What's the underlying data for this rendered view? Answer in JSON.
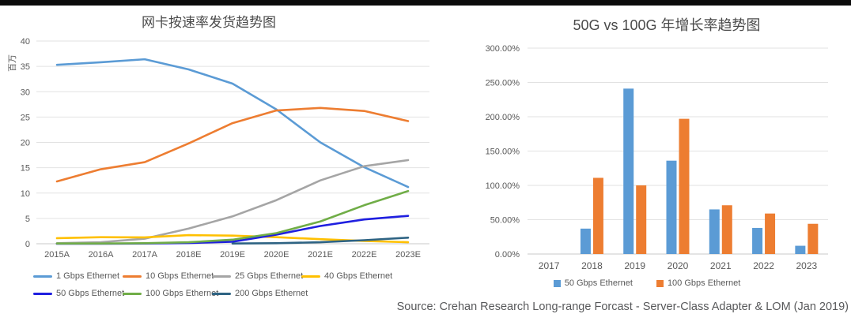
{
  "page": {
    "source_note": "Source: Crehan Research Long-range Forcast - Server-Class Adapter & LOM (Jan 2019)"
  },
  "chart_data": [
    {
      "id": "nic-shipments-by-speed",
      "type": "line",
      "title": "网卡按速率发货趋势图",
      "ylabel": "百万",
      "xlabel": "",
      "grid": true,
      "legend_position": "bottom",
      "ylim": [
        0,
        40
      ],
      "yticks": [
        0,
        5,
        10,
        15,
        20,
        25,
        30,
        35,
        40
      ],
      "ytick_labels": [
        "0",
        "5",
        "10",
        "15",
        "20",
        "25",
        "30",
        "35",
        "40"
      ],
      "categories": [
        "2015A",
        "2016A",
        "2017A",
        "2018E",
        "2019E",
        "2020E",
        "2021E",
        "2022E",
        "2023E"
      ],
      "series": [
        {
          "name": "1 Gbps Ethernet",
          "color": "#5B9BD5",
          "values": [
            35.3,
            35.8,
            36.4,
            34.4,
            31.6,
            26.5,
            20.0,
            15.1,
            11.2
          ]
        },
        {
          "name": "10 Gbps Ethernet",
          "color": "#ED7D31",
          "values": [
            12.3,
            14.7,
            16.1,
            19.8,
            23.8,
            26.3,
            26.8,
            26.2,
            24.2
          ]
        },
        {
          "name": "25 Gbps Ethernet",
          "color": "#A5A5A5",
          "values": [
            0.1,
            0.3,
            1.0,
            3.0,
            5.4,
            8.6,
            12.5,
            15.3,
            16.5
          ]
        },
        {
          "name": "40 Gbps Ethernet",
          "color": "#FFC000",
          "values": [
            1.1,
            1.3,
            1.25,
            1.7,
            1.6,
            1.3,
            0.9,
            0.55,
            0.3
          ]
        },
        {
          "name": "50 Gbps Ethernet",
          "color": "#1F1FE0",
          "values": [
            0,
            0,
            0.05,
            0.15,
            0.4,
            1.8,
            3.5,
            4.8,
            5.5
          ]
        },
        {
          "name": "100 Gbps Ethernet",
          "color": "#70AD47",
          "values": [
            0.05,
            0.05,
            0.1,
            0.3,
            0.8,
            2.1,
            4.4,
            7.6,
            10.4
          ]
        },
        {
          "name": "200 Gbps Ethernet",
          "color": "#2E6383",
          "values": [
            null,
            null,
            null,
            null,
            0.05,
            0.1,
            0.3,
            0.7,
            1.2
          ]
        }
      ]
    },
    {
      "id": "50g-vs-100g-growth",
      "type": "bar",
      "title": "50G vs 100G 年增长率趋势图",
      "xlabel": "",
      "grid": true,
      "legend_position": "bottom",
      "ylim": [
        0,
        300
      ],
      "yticks": [
        0,
        50,
        100,
        150,
        200,
        250,
        300
      ],
      "ytick_labels": [
        "0.00%",
        "50.00%",
        "100.00%",
        "150.00%",
        "200.00%",
        "250.00%",
        "300.00%"
      ],
      "categories": [
        "2017",
        "2018",
        "2019",
        "2020",
        "2021",
        "2022",
        "2023"
      ],
      "series": [
        {
          "name": "50 Gbps Ethernet",
          "color": "#5B9BD5",
          "values": [
            0,
            37,
            241,
            136,
            65,
            38,
            12
          ]
        },
        {
          "name": "100 Gbps Ethernet",
          "color": "#ED7D31",
          "values": [
            0,
            111,
            100,
            197,
            71,
            59,
            44
          ]
        }
      ]
    }
  ]
}
